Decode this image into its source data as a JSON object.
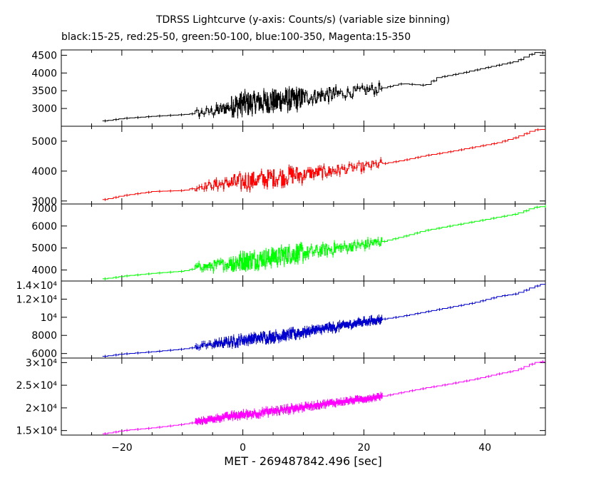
{
  "chart_data": {
    "type": "line",
    "title": "TDRSS Lightcurve (y-axis: Counts/s) (variable size binning)",
    "subtitle": "black:15-25, red:25-50, green:50-100, blue:100-350, Magenta:15-350",
    "xlabel": "MET - 269487842.496 [sec]",
    "xlim": [
      -30,
      50
    ],
    "xticks": [
      -20,
      0,
      20,
      40
    ],
    "xtick_labels": [
      "−20",
      "0",
      "20",
      "40"
    ],
    "panels": [
      {
        "name": "15-25",
        "color": "#000000",
        "ylim": [
          2500,
          4650
        ],
        "yticks": [
          3000,
          3500,
          4000,
          4500
        ],
        "ytick_labels": [
          "3000",
          "3500",
          "4000",
          "4500"
        ],
        "points": [
          [
            -23,
            2650
          ],
          [
            -20,
            2720
          ],
          [
            -15,
            2780
          ],
          [
            -10,
            2830
          ],
          [
            -7,
            2880
          ],
          [
            -4,
            2950
          ],
          [
            0,
            3150
          ],
          [
            4,
            3200
          ],
          [
            8,
            3250
          ],
          [
            12,
            3350
          ],
          [
            16,
            3420
          ],
          [
            20,
            3500
          ],
          [
            23,
            3580
          ],
          [
            26,
            3700
          ],
          [
            30,
            3650
          ],
          [
            32,
            3870
          ],
          [
            36,
            4000
          ],
          [
            40,
            4150
          ],
          [
            45,
            4330
          ],
          [
            48,
            4580
          ],
          [
            50,
            4560
          ]
        ],
        "noise": [
          [
            -8,
            -5,
            120
          ],
          [
            -5,
            -2,
            170
          ],
          [
            -2,
            10,
            320
          ],
          [
            10,
            16,
            210
          ],
          [
            16,
            23,
            150
          ]
        ]
      },
      {
        "name": "25-50",
        "color": "#ff0000",
        "ylim": [
          2900,
          5500
        ],
        "yticks": [
          3000,
          4000,
          5000
        ],
        "ytick_labels": [
          "3000",
          "4000",
          "5000"
        ],
        "points": [
          [
            -23,
            3050
          ],
          [
            -20,
            3180
          ],
          [
            -15,
            3320
          ],
          [
            -10,
            3350
          ],
          [
            -7,
            3500
          ],
          [
            -4,
            3550
          ],
          [
            0,
            3640
          ],
          [
            4,
            3760
          ],
          [
            8,
            3850
          ],
          [
            12,
            3940
          ],
          [
            16,
            4040
          ],
          [
            20,
            4150
          ],
          [
            23,
            4250
          ],
          [
            26,
            4350
          ],
          [
            30,
            4520
          ],
          [
            34,
            4650
          ],
          [
            38,
            4800
          ],
          [
            42,
            4950
          ],
          [
            45,
            5130
          ],
          [
            48,
            5380
          ],
          [
            50,
            5400
          ]
        ],
        "noise": [
          [
            -8,
            -5,
            120
          ],
          [
            -5,
            -2,
            170
          ],
          [
            -2,
            10,
            300
          ],
          [
            10,
            16,
            190
          ],
          [
            16,
            23,
            150
          ]
        ]
      },
      {
        "name": "50-100",
        "color": "#00ff00",
        "ylim": [
          3500,
          7000
        ],
        "yticks": [
          4000,
          5000,
          6000,
          7000
        ],
        "ytick_labels": [
          "4000",
          "5000",
          "6000",
          "7000"
        ],
        "points": [
          [
            -23,
            3600
          ],
          [
            -20,
            3720
          ],
          [
            -15,
            3850
          ],
          [
            -10,
            3950
          ],
          [
            -7,
            4150
          ],
          [
            -4,
            4220
          ],
          [
            0,
            4400
          ],
          [
            4,
            4550
          ],
          [
            8,
            4720
          ],
          [
            12,
            4850
          ],
          [
            16,
            5000
          ],
          [
            20,
            5150
          ],
          [
            23,
            5300
          ],
          [
            26,
            5500
          ],
          [
            30,
            5800
          ],
          [
            34,
            6000
          ],
          [
            38,
            6200
          ],
          [
            42,
            6400
          ],
          [
            45,
            6550
          ],
          [
            48,
            6850
          ],
          [
            50,
            6900
          ]
        ],
        "noise": [
          [
            -8,
            -5,
            170
          ],
          [
            -5,
            -2,
            250
          ],
          [
            -2,
            10,
            420
          ],
          [
            10,
            16,
            280
          ],
          [
            16,
            23,
            220
          ]
        ]
      },
      {
        "name": "100-350",
        "color": "#0000cc",
        "ylim": [
          5500,
          14000
        ],
        "yticks": [
          6000,
          8000,
          10000,
          12000,
          14000
        ],
        "ytick_labels": [
          "6000",
          "8000",
          "10⁴",
          "1.2×10⁴",
          "1.4×10⁴"
        ],
        "points": [
          [
            -23,
            5700
          ],
          [
            -20,
            5950
          ],
          [
            -15,
            6200
          ],
          [
            -10,
            6500
          ],
          [
            -7,
            6800
          ],
          [
            -4,
            7100
          ],
          [
            0,
            7500
          ],
          [
            4,
            7800
          ],
          [
            8,
            8100
          ],
          [
            12,
            8550
          ],
          [
            16,
            9000
          ],
          [
            20,
            9500
          ],
          [
            23,
            9800
          ],
          [
            26,
            10100
          ],
          [
            30,
            10600
          ],
          [
            34,
            11100
          ],
          [
            38,
            11600
          ],
          [
            42,
            12300
          ],
          [
            45,
            12600
          ],
          [
            48,
            13400
          ],
          [
            50,
            13800
          ]
        ],
        "noise": [
          [
            -8,
            -5,
            280
          ],
          [
            -5,
            -2,
            380
          ],
          [
            -2,
            10,
            520
          ],
          [
            10,
            16,
            400
          ],
          [
            16,
            23,
            320
          ]
        ]
      },
      {
        "name": "15-350",
        "color": "#ff00ff",
        "ylim": [
          14000,
          31000
        ],
        "yticks": [
          15000,
          20000,
          25000,
          30000
        ],
        "ytick_labels": [
          "1.5×10⁴",
          "2×10⁴",
          "2.5×10⁴",
          "3×10⁴"
        ],
        "points": [
          [
            -23,
            14300
          ],
          [
            -20,
            15000
          ],
          [
            -15,
            15600
          ],
          [
            -10,
            16400
          ],
          [
            -7,
            17100
          ],
          [
            -4,
            17800
          ],
          [
            0,
            18500
          ],
          [
            4,
            19100
          ],
          [
            8,
            19800
          ],
          [
            12,
            20600
          ],
          [
            16,
            21300
          ],
          [
            20,
            22000
          ],
          [
            23,
            22600
          ],
          [
            26,
            23400
          ],
          [
            30,
            24400
          ],
          [
            34,
            25300
          ],
          [
            38,
            26300
          ],
          [
            42,
            27500
          ],
          [
            45,
            28300
          ],
          [
            48,
            30000
          ],
          [
            50,
            30300
          ]
        ],
        "noise": [
          [
            -8,
            -5,
            350
          ],
          [
            -5,
            -2,
            500
          ],
          [
            -2,
            10,
            700
          ],
          [
            10,
            16,
            500
          ],
          [
            16,
            23,
            420
          ]
        ]
      }
    ]
  }
}
